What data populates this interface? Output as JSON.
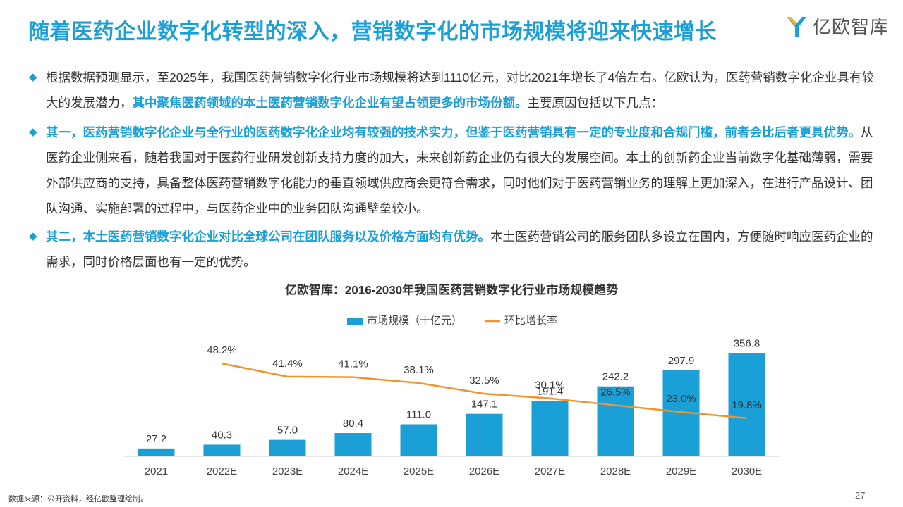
{
  "header": {
    "title": "随着医药企业数字化转型的深入，营销数字化的市场规模将迎来快速增长",
    "logo": "亿欧智库"
  },
  "paragraphs": [
    {
      "runs": [
        "根据数据预测显示，至2025年，我国医药营销数字化行业市场规模将达到1110亿元，对比2021年增长了4倍左右。亿欧认为，医药营销数字化企业具有较大的发展潜力，",
        "其中聚焦医药领域的本土医药营销数字化企业有望占领更多的市场份额。",
        "主要原因包括以下几点："
      ]
    },
    {
      "runs": [
        "其一，医药营销数字化企业与全行业的医药数字化企业均有较强的技术实力，但鉴于医药营销具有一定的专业度和合规门槛，前者会比后者更具优势。",
        "从医药企业侧来看，随着我国对于医药行业研发创新支持力度的加大，未来创新药企业仍有很大的发展空间。本土的创新药企业当前数字化基础薄弱，需要外部供应商的支持，具备整体医药营销数字化能力的垂直领域供应商会更符合需求，同时他们对于医药营销业务的理解上更加深入，在进行产品设计、团队沟通、实施部署的过程中，与医药企业中的业务团队沟通壁垒较小。"
      ]
    },
    {
      "runs": [
        "其二，本土医药营销数字化企业对比全球公司在团队服务以及价格方面均有优势。",
        "本土医药营销公司的服务团队多设立在国内，方便随时响应医药企业的需求，同时价格层面也有一定的优势。"
      ]
    }
  ],
  "chart_data": {
    "type": "bar",
    "title": "亿欧智库：2016-2030年我国医药营销数字化行业市场规模趋势",
    "categories": [
      "2021",
      "2022E",
      "2023E",
      "2024E",
      "2025E",
      "2026E",
      "2027E",
      "2028E",
      "2029E",
      "2030E"
    ],
    "series": [
      {
        "name": "市场规模（十亿元）",
        "type": "bar",
        "color": "#1a9fd6",
        "values": [
          27.2,
          40.3,
          57.0,
          80.4,
          111.0,
          147.1,
          191.4,
          242.2,
          297.9,
          356.8
        ],
        "value_labels": [
          "27.2",
          "40.3",
          "57.0",
          "80.4",
          "111.0",
          "147.1",
          "191.4",
          "242.2",
          "297.9",
          "356.8"
        ]
      },
      {
        "name": "环比增长率",
        "type": "line",
        "color": "#f0952e",
        "axis": "y2",
        "values": [
          null,
          48.2,
          41.4,
          41.1,
          38.1,
          32.5,
          30.1,
          26.5,
          23.0,
          19.8
        ],
        "value_labels": [
          null,
          "48.2%",
          "41.4%",
          "41.1%",
          "38.1%",
          "32.5%",
          "30.1%",
          "26.5%",
          "23.0%",
          "19.8%"
        ]
      }
    ],
    "ylim": [
      0,
      400
    ],
    "y2lim": [
      0,
      60
    ],
    "legend": "top"
  },
  "footer": {
    "source": "数据来源：公开资料，经亿欧整理绘制。",
    "page": "27"
  }
}
